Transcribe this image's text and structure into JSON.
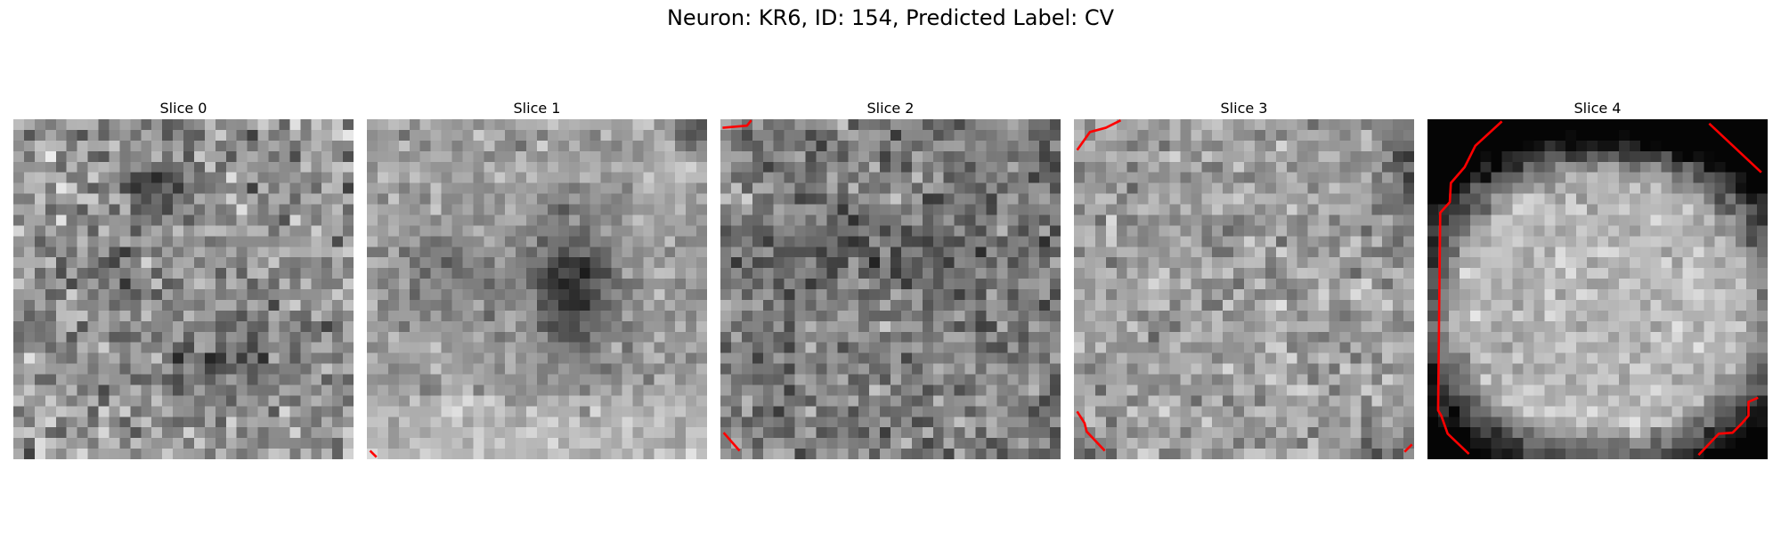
{
  "figure": {
    "title": "Neuron: KR6, ID: 154, Predicted Label: CV"
  },
  "panels": [
    {
      "title": "Slice 0",
      "pattern": "noise-dark-spots",
      "contour_color": "#ff0000"
    },
    {
      "title": "Slice 1",
      "pattern": "blurry-dark-blob",
      "contour_color": "#ff0000"
    },
    {
      "title": "Slice 2",
      "pattern": "noise-dark-band",
      "contour_color": "#ff0000"
    },
    {
      "title": "Slice 3",
      "pattern": "bright-noise",
      "contour_color": "#ff0000"
    },
    {
      "title": "Slice 4",
      "pattern": "bright-disk-dark-border",
      "contour_color": "#ff0000"
    }
  ]
}
